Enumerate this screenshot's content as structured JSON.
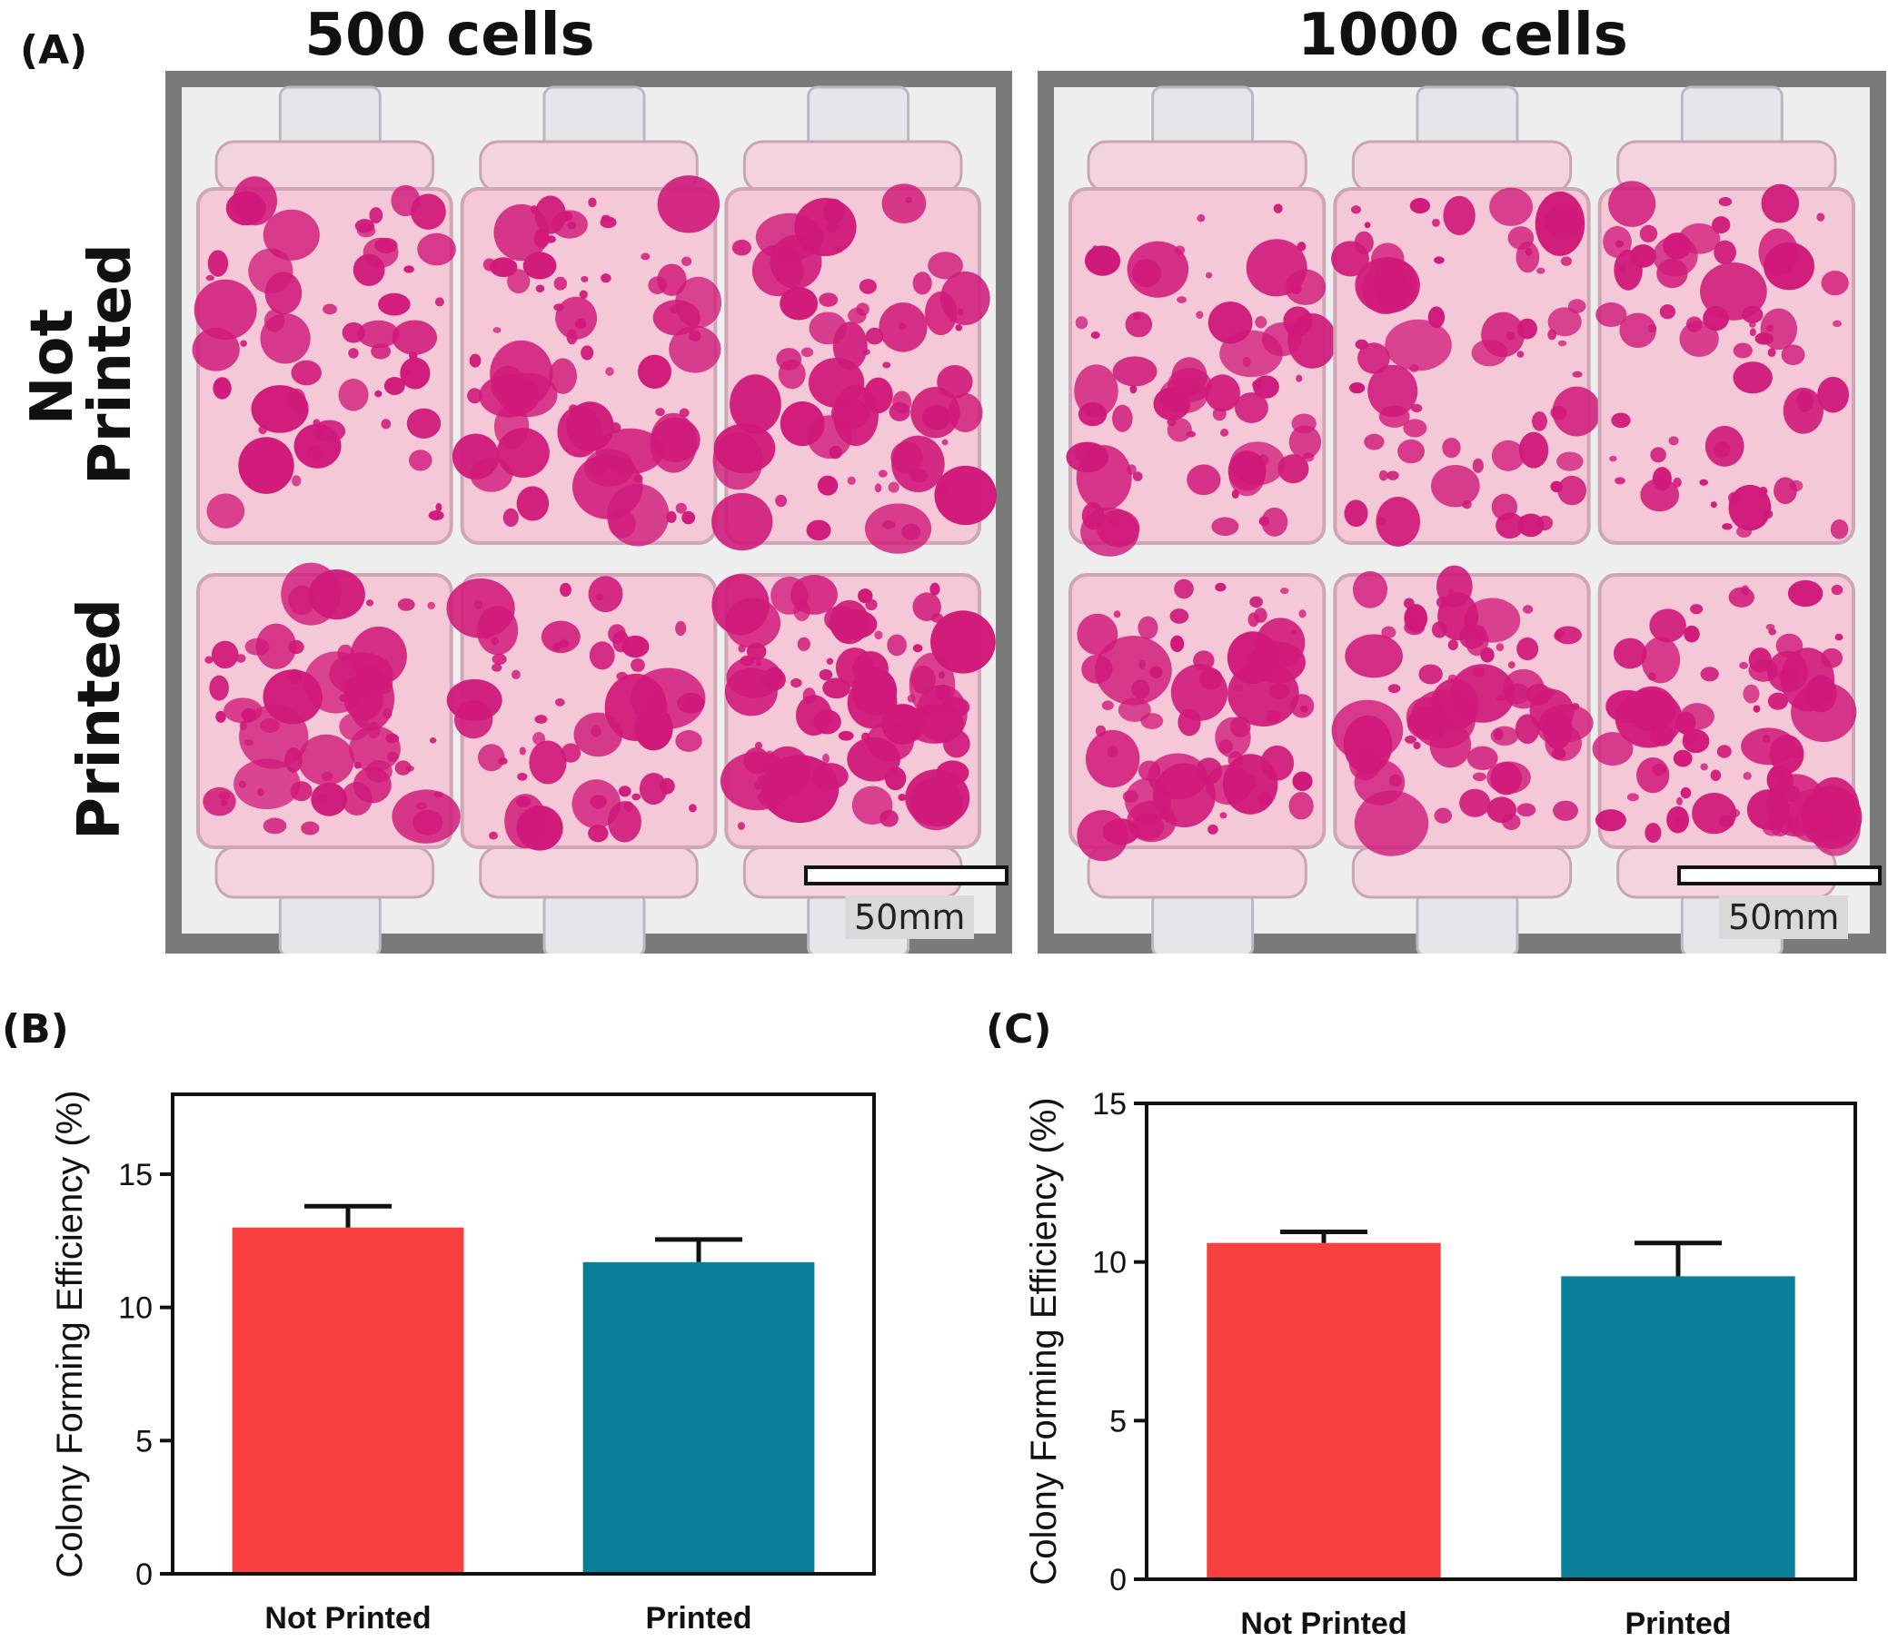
{
  "panel_a": {
    "letter": "(A)",
    "columns": [
      "500 cells",
      "1000 cells"
    ],
    "rows": [
      [
        "Not",
        "Printed"
      ],
      [
        "Printed"
      ]
    ],
    "scale_label": "50mm",
    "colors": {
      "stain": "#d0197a",
      "medium": "#f4c8d6",
      "tray": "#7a7a7a",
      "paper": "#eeeeee"
    }
  },
  "panel_b": {
    "letter": "(B)"
  },
  "panel_c": {
    "letter": "(C)"
  },
  "chart_data": [
    {
      "type": "bar",
      "panel": "(B)",
      "categories": [
        "Not Printed",
        "Printed"
      ],
      "values": [
        13.0,
        11.7
      ],
      "errors": [
        0.8,
        0.85
      ],
      "colors": [
        "#f84040",
        "#0a7f99"
      ],
      "ylabel": "Colony Forming Efficiency (%)",
      "xlabel": "",
      "ylim": [
        0,
        18
      ],
      "yticks": [
        0,
        5,
        10,
        15
      ],
      "grid": false
    },
    {
      "type": "bar",
      "panel": "(C)",
      "categories": [
        "Not Printed",
        "Printed"
      ],
      "values": [
        10.6,
        9.55
      ],
      "errors": [
        0.35,
        1.05
      ],
      "colors": [
        "#f84040",
        "#0a7f99"
      ],
      "ylabel": "Colony Forming Efficiency (%)",
      "xlabel": "",
      "ylim": [
        0,
        15
      ],
      "yticks": [
        0,
        5,
        10,
        15
      ],
      "grid": false
    }
  ]
}
